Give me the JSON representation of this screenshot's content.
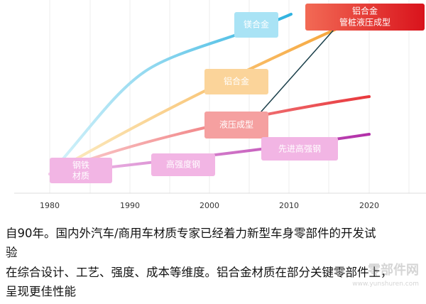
{
  "labels": [
    "镁合金",
    "铝合金",
    "管桩液压成型",
    "铝合金",
    "液压成型",
    "先进高强钢",
    "高强度钢",
    "钢铁",
    "材质"
  ],
  "axis": [
    "1980",
    "1990",
    "2000",
    "2010",
    "2020"
  ],
  "caption": [
    "自90年。国内外汽车/商用车材质专家已经着力新型车身零部件的开发试",
    "验",
    "在综合设计、工艺、强度、成本等维度。铝合金材质在部分关键零部件上，",
    "呈现更佳性能"
  ],
  "watermark": [
    "零部件网",
    "www.yunshuren.com"
  ]
}
